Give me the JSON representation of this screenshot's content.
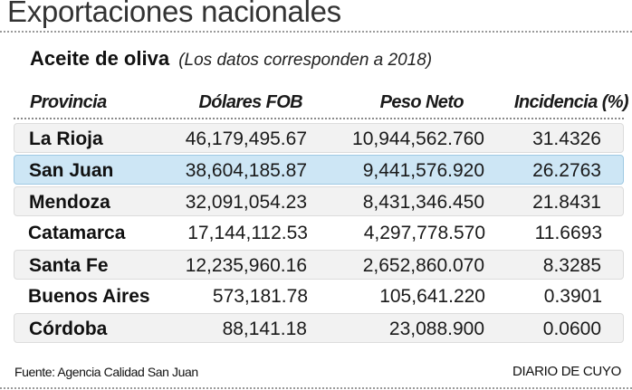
{
  "title": "Exportaciones nacionales",
  "subtitle": {
    "main": "Aceite de oliva",
    "note": "(Los datos corresponden a 2018)"
  },
  "chart_data": {
    "type": "table",
    "columns": [
      "Provincia",
      "Dólares FOB",
      "Peso Neto",
      "Incidencia (%)"
    ],
    "rows": [
      {
        "provincia": "La Rioja",
        "dolares_fob": "46,179,495.67",
        "peso_neto": "10,944,562.760",
        "incidencia": "31.4326"
      },
      {
        "provincia": "San Juan",
        "dolares_fob": "38,604,185.87",
        "peso_neto": "9,441,576.920",
        "incidencia": "26.2763"
      },
      {
        "provincia": "Mendoza",
        "dolares_fob": "32,091,054.23",
        "peso_neto": "8,431,346.450",
        "incidencia": "21.8431"
      },
      {
        "provincia": "Catamarca",
        "dolares_fob": "17,144,112.53",
        "peso_neto": "4,297,778.570",
        "incidencia": "11.6693"
      },
      {
        "provincia": "Santa Fe",
        "dolares_fob": "12,235,960.16",
        "peso_neto": "2,652,860.070",
        "incidencia": "8.3285"
      },
      {
        "provincia": "Buenos Aires",
        "dolares_fob": "573,181.78",
        "peso_neto": "105,641.220",
        "incidencia": "0.3901"
      },
      {
        "provincia": "Córdoba",
        "dolares_fob": "88,141.18",
        "peso_neto": "23,088.900",
        "incidencia": "0.0600"
      }
    ],
    "highlighted_row": "San Juan",
    "highlight_color": "#cde6f5"
  },
  "footer": {
    "source": "Fuente: Agencia Calidad San Juan",
    "brand": "DIARIO DE CUYO"
  }
}
